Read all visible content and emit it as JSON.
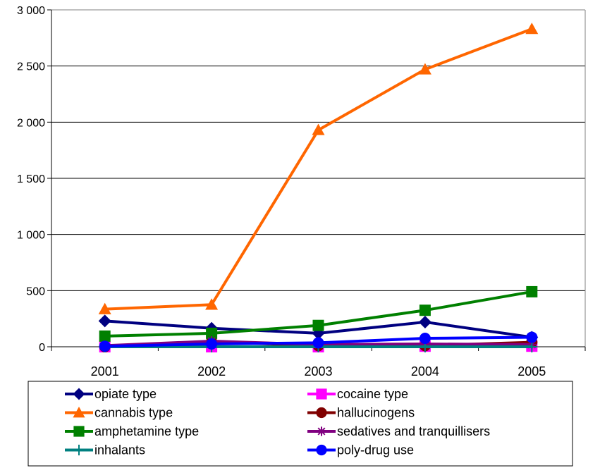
{
  "chart_data": {
    "type": "line",
    "title": "",
    "xlabel": "",
    "ylabel": "",
    "categories": [
      "2001",
      "2002",
      "2003",
      "2004",
      "2005"
    ],
    "ylim": [
      0,
      3000
    ],
    "y_ticks": [
      {
        "value": 0,
        "label": "0"
      },
      {
        "value": 500,
        "label": "500"
      },
      {
        "value": 1000,
        "label": "1 000"
      },
      {
        "value": 1500,
        "label": "1 500"
      },
      {
        "value": 2000,
        "label": "2 000"
      },
      {
        "value": 2500,
        "label": "2 500"
      },
      {
        "value": 3000,
        "label": "3 000"
      }
    ],
    "grid": "horizontal",
    "legend_position": "bottom",
    "series": [
      {
        "name": "opiate type",
        "color": "#000080",
        "marker": "diamond",
        "values": [
          230,
          165,
          120,
          220,
          85
        ]
      },
      {
        "name": "cocaine type",
        "color": "#FF00FF",
        "marker": "square",
        "values": [
          0,
          0,
          0,
          5,
          5
        ]
      },
      {
        "name": "cannabis type",
        "color": "#FF6600",
        "marker": "triangle",
        "values": [
          335,
          375,
          1930,
          2470,
          2830
        ]
      },
      {
        "name": "hallucinogens",
        "color": "#800000",
        "marker": "circle",
        "values": [
          0,
          45,
          10,
          10,
          40
        ]
      },
      {
        "name": "amphetamine type",
        "color": "#008000",
        "marker": "square",
        "values": [
          95,
          120,
          190,
          325,
          490
        ]
      },
      {
        "name": "sedatives and tranquillisers",
        "color": "#800080",
        "marker": "star",
        "values": [
          10,
          50,
          20,
          25,
          20
        ]
      },
      {
        "name": "inhalants",
        "color": "#008080",
        "marker": "plus",
        "values": [
          0,
          0,
          0,
          0,
          0
        ]
      },
      {
        "name": "poly-drug use",
        "color": "#0000FF",
        "marker": "circle",
        "values": [
          5,
          25,
          35,
          75,
          85
        ]
      }
    ]
  }
}
